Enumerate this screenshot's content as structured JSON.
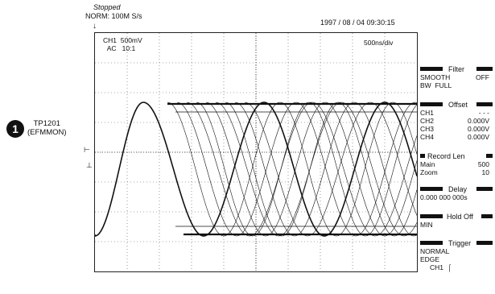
{
  "status": {
    "state": "Stopped",
    "mode": "NORM: 100M S/s"
  },
  "datetime": "1997 / 08 / 04  09:30:15",
  "channel": {
    "label": "CH1",
    "volts": "500mV",
    "coupling": "AC",
    "probe": "10:1"
  },
  "timebase": "500ns/div",
  "callout": {
    "number": "1",
    "line1": "TP1201",
    "line2": "(EFMMON)"
  },
  "markers": {
    "trigger_position": "↓",
    "ch1_ground": "⊢",
    "trigger_level": "⊥"
  },
  "menu": {
    "filter": {
      "title": "Filter",
      "row1_label": "SMOOTH",
      "row1_value": "OFF",
      "row2_label": "BW",
      "row2_value": "FULL"
    },
    "offset": {
      "title": "Offset",
      "rows": [
        {
          "label": "CH1",
          "value": "- - -"
        },
        {
          "label": "CH2",
          "value": "0.000V"
        },
        {
          "label": "CH3",
          "value": "0.000V"
        },
        {
          "label": "CH4",
          "value": "0.000V"
        }
      ]
    },
    "record": {
      "title": "Record Len",
      "row1_label": "Main",
      "row1_value": "500",
      "row2_label": "Zoom",
      "row2_value": "10"
    },
    "delay": {
      "title": "Delay",
      "value": "0.000 000 000s"
    },
    "holdoff": {
      "title": "Hold Off",
      "value": "MIN"
    },
    "trigger": {
      "title": "Trigger",
      "mode": "NORMAL",
      "type": "EDGE",
      "source": "CH1",
      "slope_icon": "rising-edge-icon"
    }
  }
}
